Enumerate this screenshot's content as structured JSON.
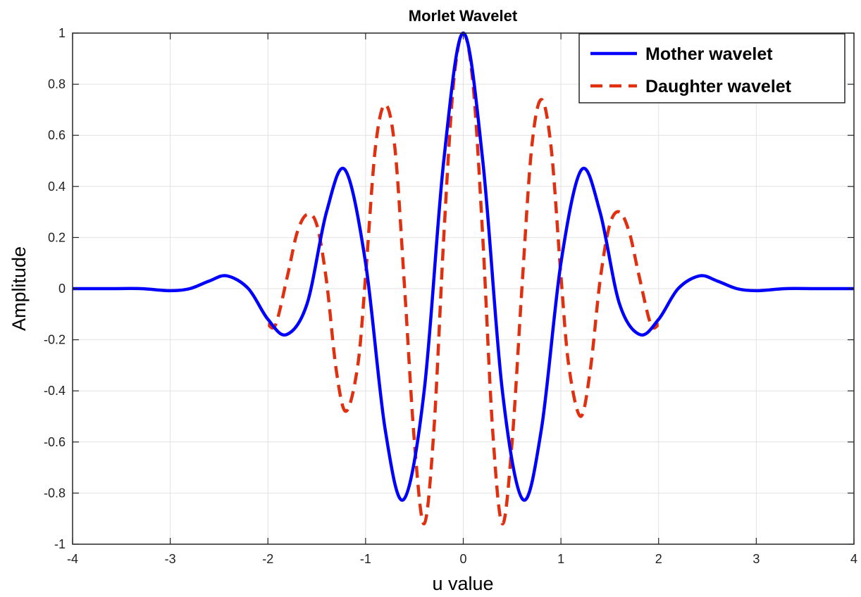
{
  "chart_data": {
    "type": "line",
    "title": "Morlet Wavelet",
    "xlabel": "u value",
    "ylabel": "Amplitude",
    "xlim": [
      -4,
      4
    ],
    "ylim": [
      -1,
      1
    ],
    "xticks": [
      -4,
      -3,
      -2,
      -1,
      0,
      1,
      2,
      3,
      4
    ],
    "yticks": [
      -1,
      -0.8,
      -0.6,
      -0.4,
      -0.2,
      0,
      0.2,
      0.4,
      0.6,
      0.8,
      1
    ],
    "xtick_labels": [
      "-4",
      "-3",
      "-2",
      "-1",
      "0",
      "1",
      "2",
      "3",
      "4"
    ],
    "ytick_labels": [
      "-1",
      "-0.8",
      "-0.6",
      "-0.4",
      "-0.2",
      "0",
      "0.2",
      "0.4",
      "0.6",
      "0.8",
      "1"
    ],
    "grid": true,
    "legend_position": "top-right",
    "series": [
      {
        "name": "Mother wavelet",
        "color": "#0000ff",
        "style": "solid",
        "x": [
          -4,
          -3.6,
          -3.3,
          -3,
          -2.8,
          -2.6,
          -2.42,
          -2.2,
          -2,
          -1.81,
          -1.6,
          -1.4,
          -1.21,
          -1.0,
          -0.8,
          -0.61,
          -0.4,
          -0.2,
          0,
          0.2,
          0.4,
          0.61,
          0.8,
          1.0,
          1.21,
          1.4,
          1.6,
          1.81,
          2,
          2.2,
          2.42,
          2.6,
          2.8,
          3,
          3.3,
          3.6,
          4
        ],
        "y": [
          0,
          0,
          0,
          -0.008,
          0.0,
          0.03,
          0.05,
          0.0,
          -0.12,
          -0.18,
          -0.06,
          0.3,
          0.465,
          0.1,
          -0.55,
          -0.825,
          -0.4,
          0.5,
          1.0,
          0.5,
          -0.4,
          -0.825,
          -0.55,
          0.1,
          0.465,
          0.3,
          -0.06,
          -0.18,
          -0.12,
          0.0,
          0.05,
          0.03,
          0.0,
          -0.008,
          0,
          0,
          0
        ]
      },
      {
        "name": "Daughter wavelet",
        "color": "#e03010",
        "style": "dashed",
        "x": [
          -2,
          -1.92,
          -1.8,
          -1.7,
          -1.6,
          -1.5,
          -1.4,
          -1.3,
          -1.2,
          -1.08,
          -1.0,
          -0.9,
          -0.8,
          -0.7,
          -0.6,
          -0.5,
          -0.4,
          -0.3,
          -0.2,
          -0.1,
          0,
          0.1,
          0.2,
          0.3,
          0.4,
          0.5,
          0.6,
          0.7,
          0.8,
          0.9,
          1.0,
          1.08,
          1.2,
          1.3,
          1.4,
          1.5,
          1.6,
          1.7,
          1.8,
          1.92,
          2
        ],
        "y": [
          -0.14,
          -0.14,
          0.05,
          0.22,
          0.29,
          0.25,
          0.03,
          -0.32,
          -0.48,
          -0.3,
          0.05,
          0.55,
          0.72,
          0.55,
          0.0,
          -0.6,
          -0.92,
          -0.55,
          0.2,
          0.8,
          1.0,
          0.8,
          0.2,
          -0.55,
          -0.92,
          -0.6,
          0.0,
          0.55,
          0.74,
          0.55,
          0.05,
          -0.3,
          -0.5,
          -0.32,
          0.03,
          0.25,
          0.3,
          0.22,
          0.05,
          -0.14,
          -0.14
        ]
      }
    ]
  }
}
